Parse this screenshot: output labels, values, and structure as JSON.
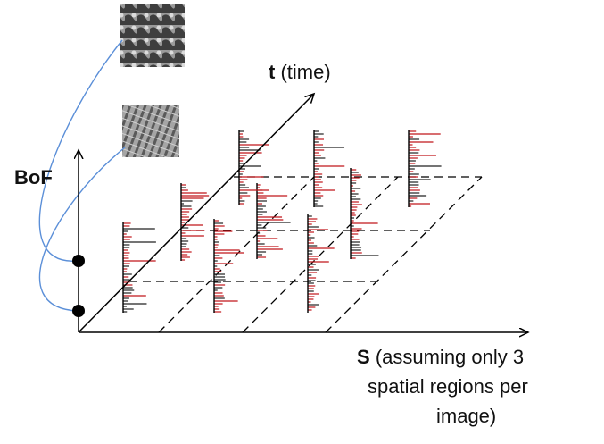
{
  "bof_axis": {
    "label": "BoF"
  },
  "time_axis": {
    "symbol": "t",
    "name": "(time)"
  },
  "space_axis": {
    "symbol": "S",
    "lines": [
      "(assuming only 3",
      "spatial regions per",
      "image)"
    ]
  }
}
